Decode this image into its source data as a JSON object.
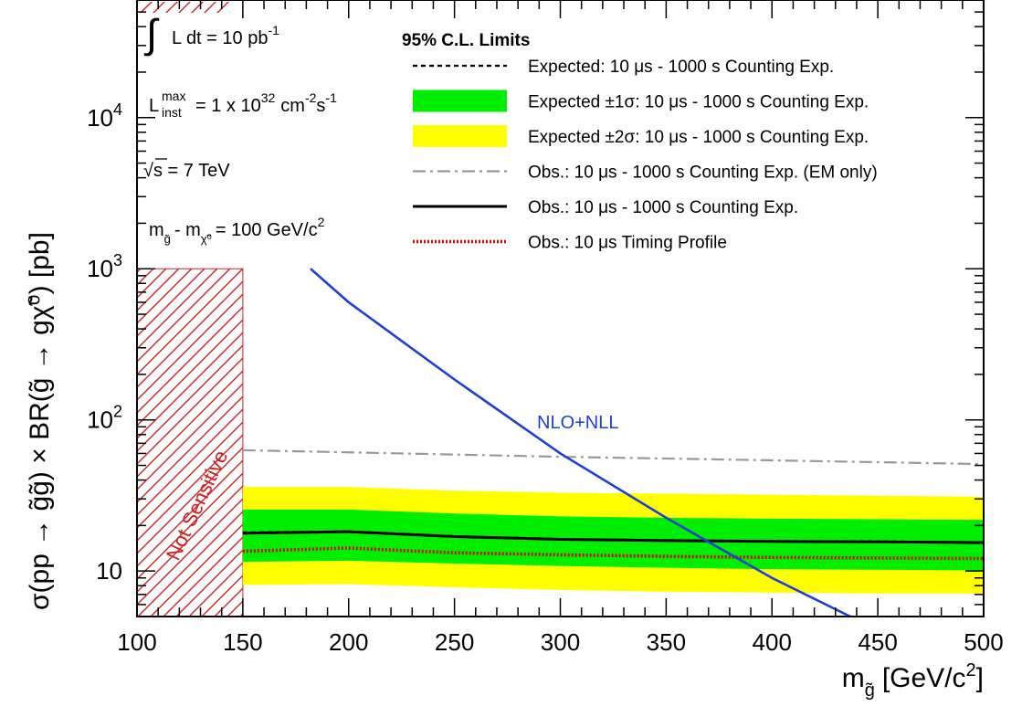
{
  "annotations": {
    "lumi_integral": "∫",
    "lumi_text": "L dt = 10 pb",
    "lumi_sup": "-1",
    "linst_L": "L",
    "linst_sup": "max",
    "linst_sub": "inst",
    "linst_value": "= 1 x 10",
    "linst_exp": "32",
    "linst_units": "cm",
    "linst_units_exp1": "-2",
    "linst_units_s": "s",
    "linst_units_exp2": "-1",
    "sqrt_symbol": "√",
    "sqrt_text": "s = 7 TeV",
    "mass_m1": "m",
    "mass_sub1": "g̃",
    "mass_minus": "- m",
    "mass_sub2": "χ̃⁰",
    "mass_value": "= 100 GeV/c",
    "mass_exp": "2",
    "not_sensitive": "Not Sensitive",
    "nlo_label": "NLO+NLL"
  },
  "chart_data": {
    "type": "line",
    "title": "",
    "xlabel_main": "m",
    "xlabel_sub": "g̃",
    "xlabel_rest": "[GeV/c",
    "xlabel_exp": "2",
    "xlabel_close": "]",
    "ylabel": "σ(pp → g̃g̃) × BR(g̃ → gχ̃⁰) [pb]",
    "xlim": [
      100,
      500
    ],
    "ylim": [
      5,
      60000
    ],
    "yscale": "log",
    "x_ticks": [
      100,
      150,
      200,
      250,
      300,
      350,
      400,
      450,
      500
    ],
    "x_tick_labels": [
      "100",
      "150",
      "200",
      "250",
      "300",
      "350",
      "400",
      "450",
      "500"
    ],
    "y_ticks": [
      10,
      100,
      1000,
      10000
    ],
    "y_tick_labels": [
      {
        "base": "10",
        "exp": ""
      },
      {
        "base": "10",
        "exp": "2"
      },
      {
        "base": "10",
        "exp": "3"
      },
      {
        "base": "10",
        "exp": "4"
      }
    ],
    "grid": false,
    "legend_placement": "top-right",
    "legend_header": "95% C.L. Limits",
    "not_sensitive_region": {
      "x_from": 100,
      "x_to": 150,
      "y_to": 1000,
      "color": "#cc2222"
    },
    "x": [
      150,
      200,
      250,
      300,
      350,
      400,
      450,
      500
    ],
    "series": [
      {
        "name": "Expected ±2σ: 10 μs - 1000 s Counting Exp.",
        "kind": "band",
        "color": "#ffff00",
        "low": [
          8.1,
          8.2,
          7.8,
          7.5,
          7.3,
          7.2,
          7.1,
          7.1
        ],
        "high": [
          36,
          36,
          34,
          33,
          32.5,
          32,
          31.5,
          31
        ]
      },
      {
        "name": "Expected ±1σ: 10 μs - 1000 s Counting Exp.",
        "kind": "band",
        "color": "#00ee00",
        "low": [
          11.5,
          11.7,
          11.2,
          10.8,
          10.5,
          10.3,
          10.2,
          10.1
        ],
        "high": [
          25.5,
          25.5,
          24,
          23,
          22.5,
          22.2,
          22,
          21.8
        ]
      },
      {
        "name": "Obs.: 10 μs - 1000 s Counting Exp. (EM only)",
        "kind": "line",
        "style": "dashdot",
        "color": "#999999",
        "values": [
          63,
          61,
          59,
          57,
          55.5,
          54,
          52.5,
          51
        ]
      },
      {
        "name": "Expected: 10 μs - 1000 s Counting Exp.",
        "kind": "line",
        "style": "dashed",
        "color": "#000000",
        "values": [
          18,
          18.3,
          17,
          16.3,
          16,
          15.8,
          15.7,
          15.5
        ]
      },
      {
        "name": "Obs.: 10 μs - 1000 s Counting Exp.",
        "kind": "line",
        "style": "solid",
        "color": "#000000",
        "values": [
          17.8,
          18.2,
          16.9,
          16.2,
          15.9,
          15.7,
          15.6,
          15.4
        ]
      },
      {
        "name": "Obs.: 10 μs Timing Profile",
        "kind": "line",
        "style": "dotted",
        "color": "#dd0000",
        "values": [
          13.5,
          14.2,
          13.2,
          12.8,
          12.5,
          12.3,
          12.2,
          12.1
        ]
      },
      {
        "name": "NLO+NLL",
        "kind": "theory",
        "style": "solid",
        "color": "#1f3fd8",
        "x": [
          182,
          200,
          250,
          300,
          350,
          400,
          437
        ],
        "values": [
          1000,
          600,
          185,
          60,
          22.5,
          9,
          5
        ]
      }
    ]
  }
}
